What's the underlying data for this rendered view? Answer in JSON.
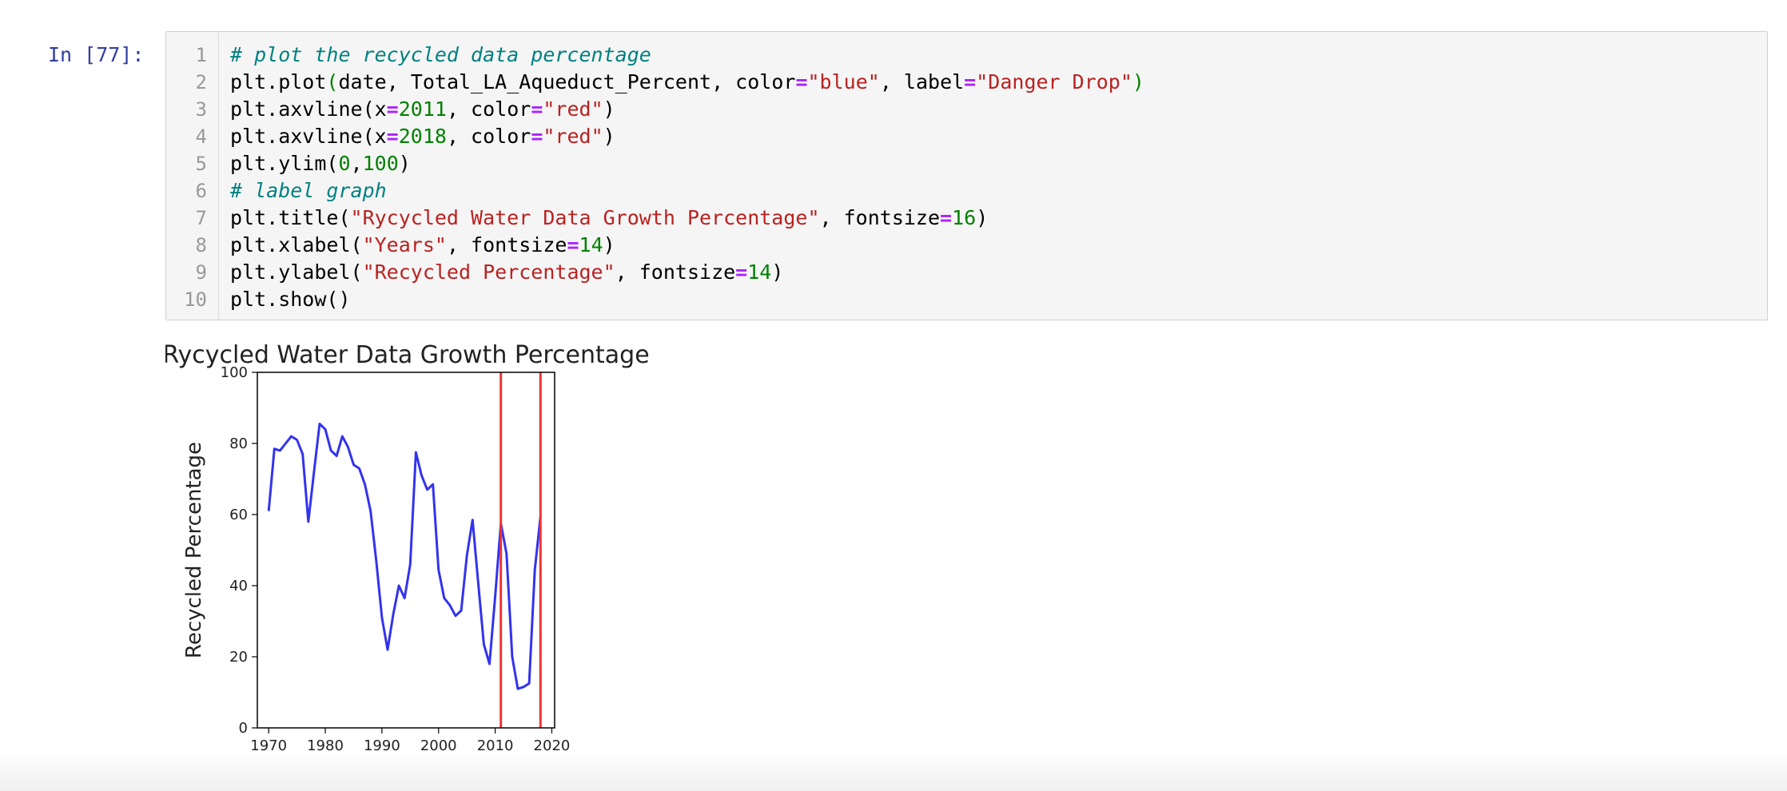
{
  "prompt": "In [77]:",
  "code_lines": [
    [
      {
        "t": "# plot the recycled data percentage",
        "c": "c-com"
      }
    ],
    [
      {
        "t": "plt.plot",
        "c": ""
      },
      {
        "t": "(",
        "c": "c-paren-g"
      },
      {
        "t": "date, Total_LA_Aqueduct_Percent, color",
        "c": ""
      },
      {
        "t": "=",
        "c": "c-op"
      },
      {
        "t": "\"blue\"",
        "c": "c-str"
      },
      {
        "t": ", label",
        "c": ""
      },
      {
        "t": "=",
        "c": "c-op"
      },
      {
        "t": "\"Danger Drop\"",
        "c": "c-str"
      },
      {
        "t": ")",
        "c": "c-paren-g"
      }
    ],
    [
      {
        "t": "plt.axvline(x",
        "c": ""
      },
      {
        "t": "=",
        "c": "c-op"
      },
      {
        "t": "2011",
        "c": "c-num"
      },
      {
        "t": ", color",
        "c": ""
      },
      {
        "t": "=",
        "c": "c-op"
      },
      {
        "t": "\"red\"",
        "c": "c-str"
      },
      {
        "t": ")",
        "c": ""
      }
    ],
    [
      {
        "t": "plt.axvline(x",
        "c": ""
      },
      {
        "t": "=",
        "c": "c-op"
      },
      {
        "t": "2018",
        "c": "c-num"
      },
      {
        "t": ", color",
        "c": ""
      },
      {
        "t": "=",
        "c": "c-op"
      },
      {
        "t": "\"red\"",
        "c": "c-str"
      },
      {
        "t": ")",
        "c": ""
      }
    ],
    [
      {
        "t": "plt.ylim(",
        "c": ""
      },
      {
        "t": "0",
        "c": "c-num"
      },
      {
        "t": ",",
        "c": ""
      },
      {
        "t": "100",
        "c": "c-num"
      },
      {
        "t": ")",
        "c": ""
      }
    ],
    [
      {
        "t": "# label graph",
        "c": "c-com"
      }
    ],
    [
      {
        "t": "plt.title(",
        "c": ""
      },
      {
        "t": "\"Rycycled Water Data Growth Percentage\"",
        "c": "c-str"
      },
      {
        "t": ", fontsize",
        "c": ""
      },
      {
        "t": "=",
        "c": "c-op"
      },
      {
        "t": "16",
        "c": "c-num"
      },
      {
        "t": ")",
        "c": ""
      }
    ],
    [
      {
        "t": "plt.xlabel(",
        "c": ""
      },
      {
        "t": "\"Years\"",
        "c": "c-str"
      },
      {
        "t": ", fontsize",
        "c": ""
      },
      {
        "t": "=",
        "c": "c-op"
      },
      {
        "t": "14",
        "c": "c-num"
      },
      {
        "t": ")",
        "c": ""
      }
    ],
    [
      {
        "t": "plt.ylabel(",
        "c": ""
      },
      {
        "t": "\"Recycled Percentage\"",
        "c": "c-str"
      },
      {
        "t": ", fontsize",
        "c": ""
      },
      {
        "t": "=",
        "c": "c-op"
      },
      {
        "t": "14",
        "c": "c-num"
      },
      {
        "t": ")",
        "c": ""
      }
    ],
    [
      {
        "t": "plt.show()",
        "c": ""
      }
    ]
  ],
  "line_numbers": [
    "1",
    "2",
    "3",
    "4",
    "5",
    "6",
    "7",
    "8",
    "9",
    "10"
  ],
  "chart_data": {
    "type": "line",
    "title": "Rycycled Water Data Growth Percentage",
    "xlabel": "Years",
    "ylabel": "Recycled Percentage",
    "xlim": [
      1968,
      2020.5
    ],
    "ylim": [
      0,
      100
    ],
    "xticks": [
      "1970",
      "1980",
      "1990",
      "2000",
      "2010",
      "2020"
    ],
    "yticks": [
      "0",
      "20",
      "40",
      "60",
      "80",
      "100"
    ],
    "line_color": "#3333ee",
    "vline_color": "#ee3333",
    "vlines": [
      2011,
      2018
    ],
    "series": [
      {
        "x": [
          1970,
          1971,
          1972,
          1973,
          1974,
          1975,
          1976,
          1977,
          1978,
          1979,
          1980,
          1981,
          1982,
          1983,
          1984,
          1985,
          1986,
          1987,
          1988,
          1989,
          1990,
          1991,
          1992,
          1993,
          1994,
          1995,
          1996,
          1997,
          1998,
          1999,
          2000,
          2001,
          2002,
          2003,
          2004,
          2005,
          2006,
          2007,
          2008,
          2009,
          2010,
          2011,
          2012,
          2013,
          2014,
          2015,
          2016,
          2017,
          2018
        ],
        "values": [
          61,
          78.5,
          78,
          80,
          82,
          81,
          77,
          58,
          72,
          85.5,
          84,
          78,
          76.5,
          82,
          79,
          74,
          73,
          68.5,
          61,
          47,
          31,
          22,
          32,
          40,
          36.5,
          46,
          77.5,
          71,
          67,
          68.5,
          44.5,
          36.5,
          34.5,
          31.5,
          33,
          48.5,
          58.5,
          41,
          23.5,
          18,
          37,
          57.5,
          49,
          20,
          11,
          11.5,
          12.5,
          44.5,
          59.5
        ]
      }
    ]
  }
}
